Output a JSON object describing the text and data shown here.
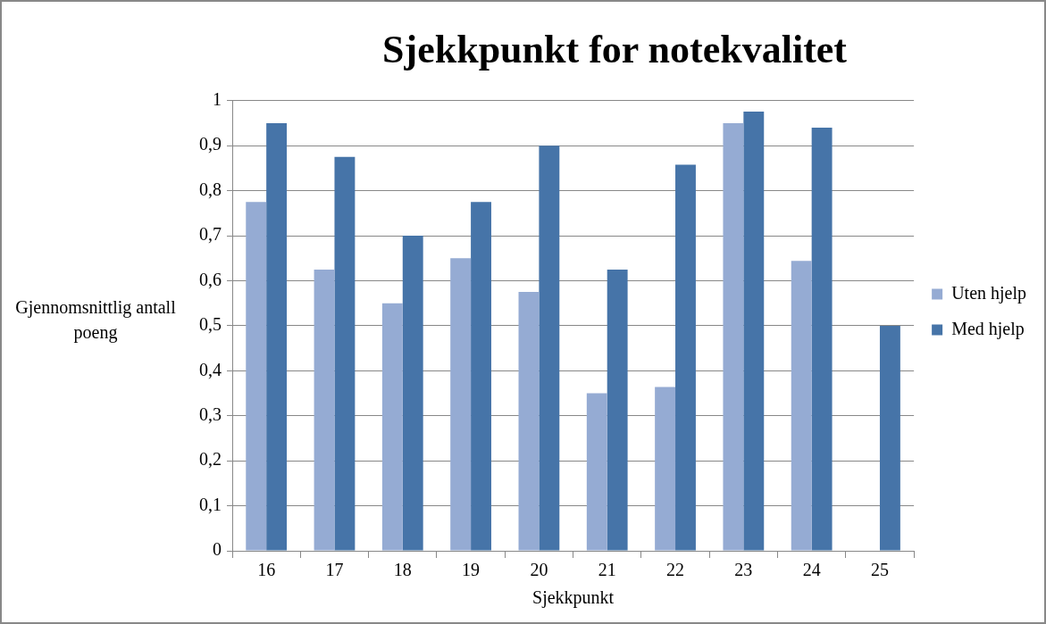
{
  "chart_data": {
    "type": "bar",
    "title": "Sjekkpunkt for notekvalitet",
    "xlabel": "Sjekkpunkt",
    "ylabel": "Gjennomsnittlig antall poeng",
    "categories": [
      "16",
      "17",
      "18",
      "19",
      "20",
      "21",
      "22",
      "23",
      "24",
      "25"
    ],
    "series": [
      {
        "name": "Uten hjelp",
        "color": "#95abd3",
        "values": [
          0.775,
          0.625,
          0.55,
          0.65,
          0.575,
          0.35,
          0.364,
          0.95,
          0.644,
          null
        ]
      },
      {
        "name": "Med hjelp",
        "color": "#4674a8",
        "values": [
          0.95,
          0.875,
          0.7,
          0.775,
          0.9,
          0.625,
          0.858,
          0.976,
          0.94,
          0.5
        ]
      }
    ],
    "ylim": [
      0,
      1
    ],
    "yticks": [
      {
        "value": 0,
        "label": "0"
      },
      {
        "value": 0.1,
        "label": "0,1"
      },
      {
        "value": 0.2,
        "label": "0,2"
      },
      {
        "value": 0.3,
        "label": "0,3"
      },
      {
        "value": 0.4,
        "label": "0,4"
      },
      {
        "value": 0.5,
        "label": "0,5"
      },
      {
        "value": 0.6,
        "label": "0,6"
      },
      {
        "value": 0.7,
        "label": "0,7"
      },
      {
        "value": 0.8,
        "label": "0,8"
      },
      {
        "value": 0.9,
        "label": "0,9"
      },
      {
        "value": 1,
        "label": "1"
      }
    ],
    "grid": "y",
    "legend": "right"
  }
}
